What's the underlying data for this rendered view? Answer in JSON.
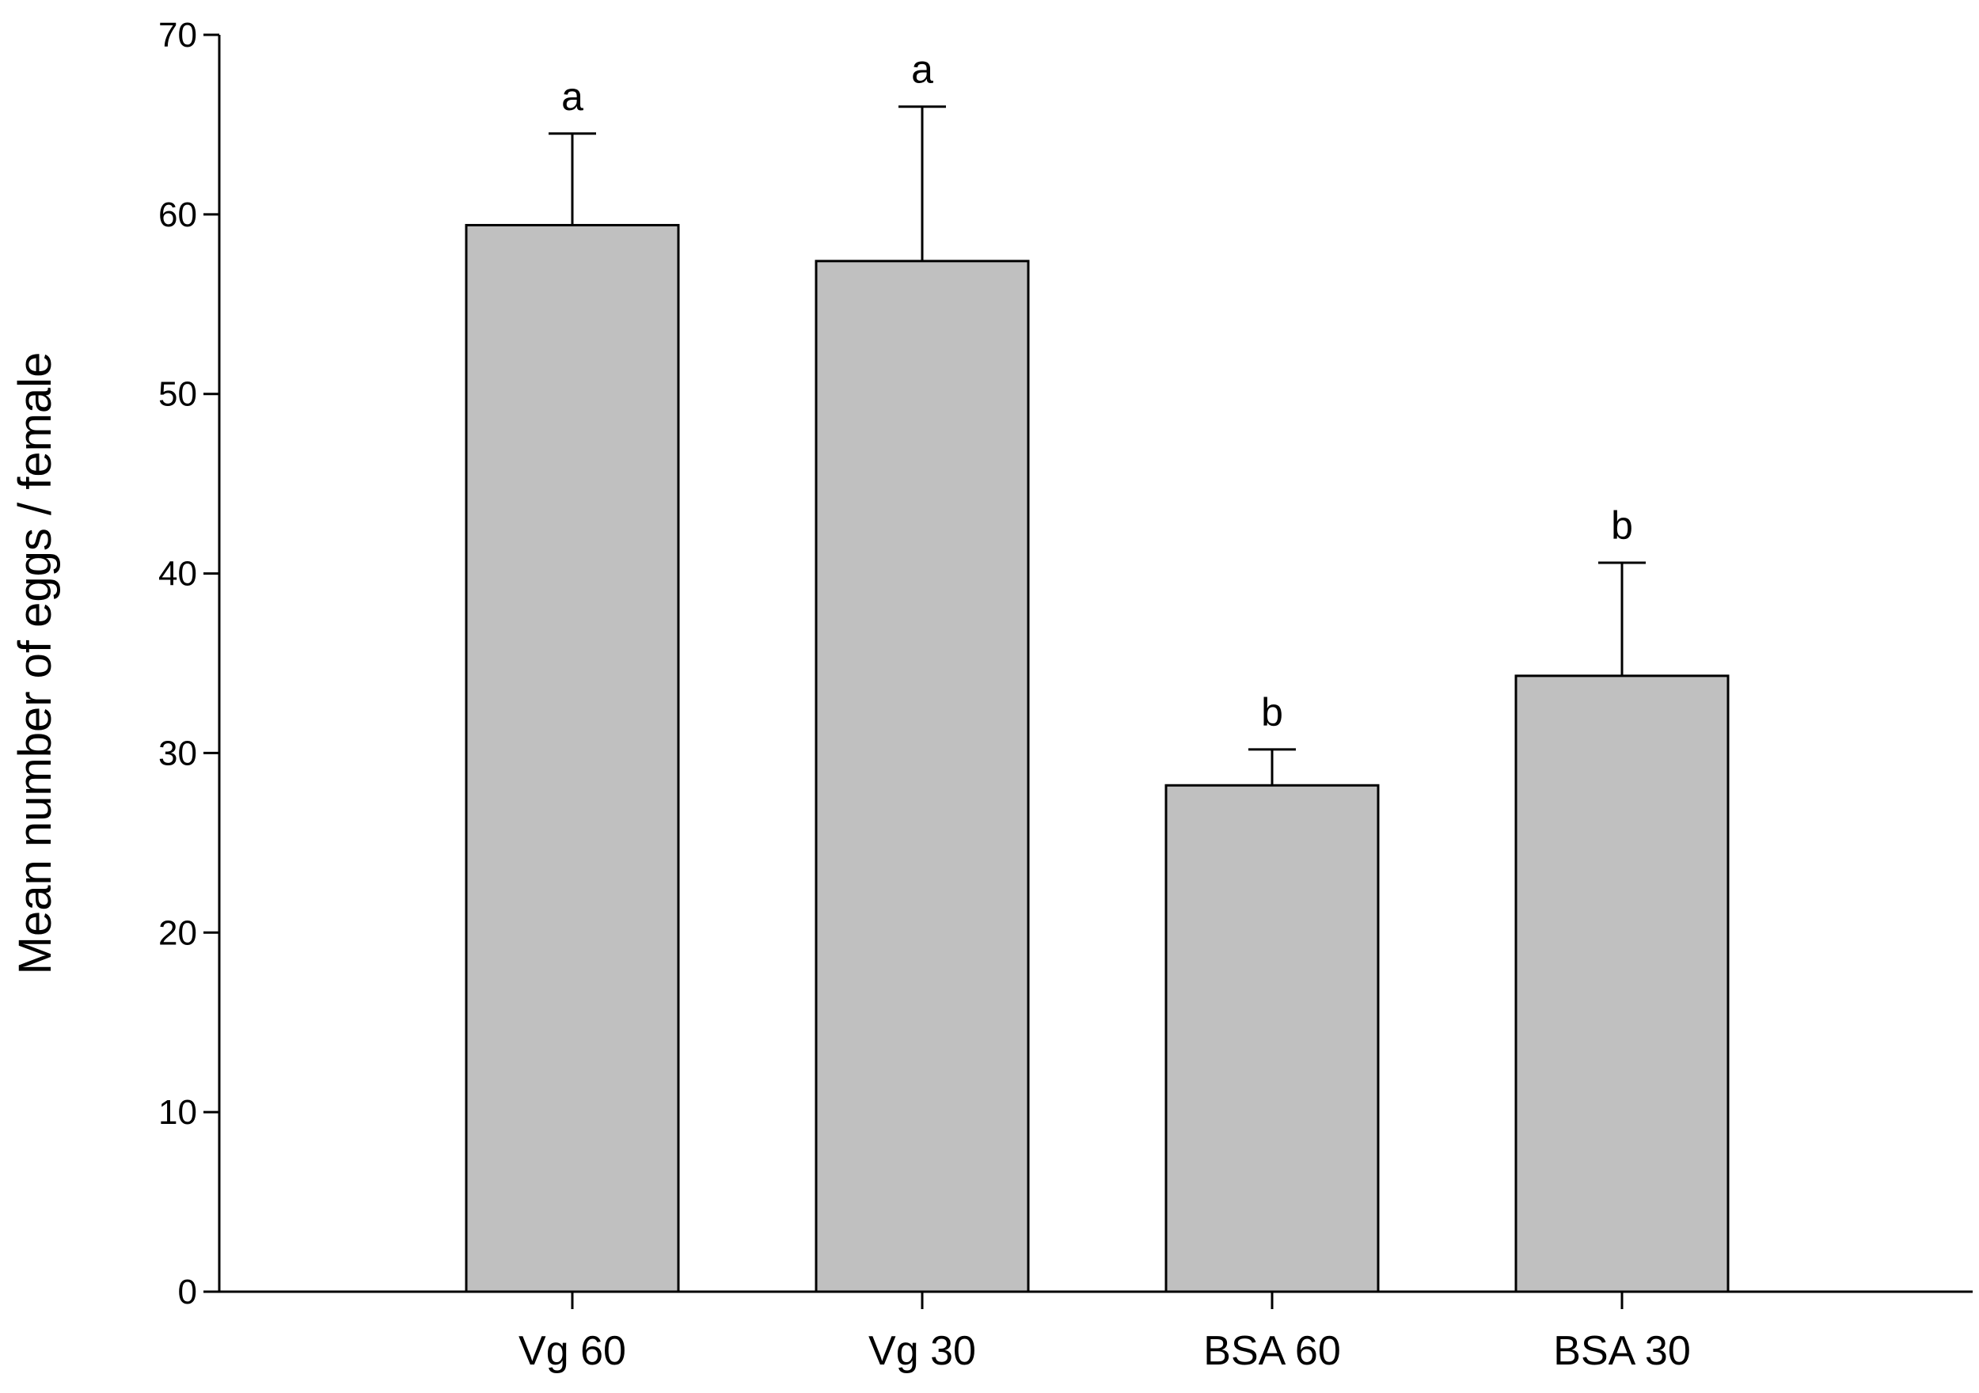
{
  "chart_data": {
    "type": "bar",
    "title": "",
    "xlabel": "",
    "ylabel": "Mean number of eggs / female",
    "ylim": [
      0,
      70
    ],
    "yticks": [
      0,
      10,
      20,
      30,
      40,
      50,
      60,
      70
    ],
    "categories": [
      "Vg 60",
      "Vg 30",
      "BSA 60",
      "BSA 30"
    ],
    "values": [
      59.4,
      57.4,
      28.2,
      34.3
    ],
    "error_upper": [
      5.1,
      8.6,
      2.0,
      6.3
    ],
    "significance_letters": [
      "a",
      "a",
      "b",
      "b"
    ],
    "bar_color": "#c0c0c0",
    "grid": false,
    "legend": "none"
  }
}
